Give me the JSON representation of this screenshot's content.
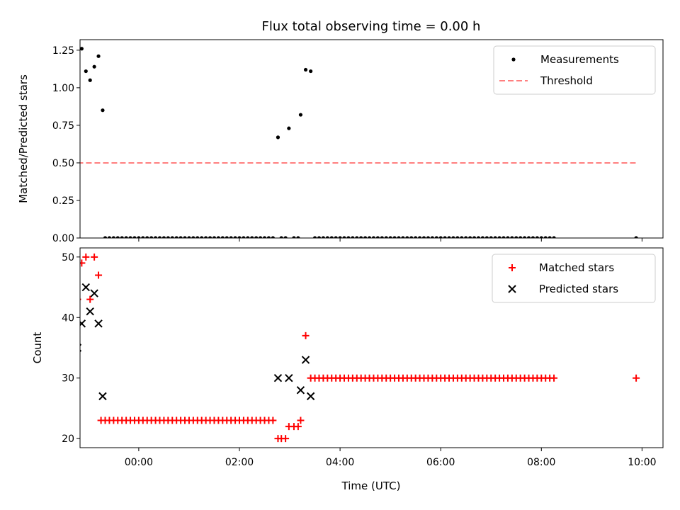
{
  "title": "Flux total observing time = 0.00 h",
  "xlabel": "Time (UTC)",
  "x_ticks": [
    "00:00",
    "02:00",
    "04:00",
    "06:00",
    "08:00",
    "10:00"
  ],
  "chart_data": [
    {
      "type": "scatter",
      "panel": "top",
      "ylabel": "Matched/Predicted stars",
      "xlim": [
        "-01:10",
        "10:25"
      ],
      "ylim": [
        0,
        1.32
      ],
      "y_ticks": [
        "0.00",
        "0.25",
        "0.50",
        "0.75",
        "1.00",
        "1.25"
      ],
      "x_ticks": [
        "00:00",
        "02:00",
        "04:00",
        "06:00",
        "08:00",
        "10:00"
      ],
      "legend_placement": "upper right",
      "series": [
        {
          "name": "Measurements",
          "marker": "dot",
          "color": "#000000",
          "points": [
            [
              "-01:13",
              1.23
            ],
            [
              "-01:08",
              1.26
            ],
            [
              "-01:03",
              1.11
            ],
            [
              "-00:58",
              1.05
            ],
            [
              "-00:53",
              1.14
            ],
            [
              "-00:48",
              1.21
            ],
            [
              "-00:43",
              0.85
            ],
            [
              "02:46",
              0.67
            ],
            [
              "02:59",
              0.73
            ],
            [
              "03:13",
              0.82
            ],
            [
              "03:19",
              1.12
            ],
            [
              "03:25",
              1.11
            ],
            [
              "09:53",
              0.0
            ]
          ],
          "zero_runs": [
            {
              "start": "-00:40",
              "end": "02:40",
              "step_minutes": 5
            },
            {
              "start": "02:50",
              "end": "02:55",
              "step_minutes": 5
            },
            {
              "start": "03:05",
              "end": "03:10",
              "step_minutes": 5
            },
            {
              "start": "03:30",
              "end": "08:15",
              "step_minutes": 5
            }
          ]
        },
        {
          "name": "Threshold",
          "line_style": "dashed",
          "color": "#ff7f7f",
          "x": [
            "-01:13",
            "09:53"
          ],
          "y": [
            0.5,
            0.5
          ]
        }
      ]
    },
    {
      "type": "scatter",
      "panel": "bottom",
      "ylabel": "Count",
      "xlim": [
        "-01:10",
        "10:25"
      ],
      "ylim": [
        18.5,
        51.5
      ],
      "y_ticks": [
        "20",
        "30",
        "40",
        "50"
      ],
      "x_ticks": [
        "00:00",
        "02:00",
        "04:00",
        "06:00",
        "08:00",
        "10:00"
      ],
      "legend_placement": "upper right",
      "series": [
        {
          "name": "Matched stars",
          "marker": "plus",
          "color": "#ff0000",
          "points": [
            [
              "-01:13",
              43
            ],
            [
              "-01:08",
              49
            ],
            [
              "-01:03",
              50
            ],
            [
              "-00:58",
              43
            ],
            [
              "-00:53",
              50
            ],
            [
              "-00:48",
              47
            ],
            [
              "02:46",
              20
            ],
            [
              "02:50",
              20
            ],
            [
              "02:55",
              20
            ],
            [
              "02:59",
              22
            ],
            [
              "03:05",
              22
            ],
            [
              "03:10",
              22
            ],
            [
              "03:13",
              23
            ],
            [
              "03:19",
              37
            ],
            [
              "09:53",
              30
            ]
          ],
          "constant_runs": [
            {
              "start": "-00:45",
              "end": "02:40",
              "step_minutes": 5,
              "value": 23
            },
            {
              "start": "03:25",
              "end": "08:15",
              "step_minutes": 5,
              "value": 30
            }
          ]
        },
        {
          "name": "Predicted stars",
          "marker": "x",
          "color": "#000000",
          "points": [
            [
              "-01:13",
              35
            ],
            [
              "-01:08",
              39
            ],
            [
              "-01:03",
              45
            ],
            [
              "-00:58",
              41
            ],
            [
              "-00:53",
              44
            ],
            [
              "-00:48",
              39
            ],
            [
              "-00:43",
              27
            ],
            [
              "02:46",
              30
            ],
            [
              "02:59",
              30
            ],
            [
              "03:13",
              28
            ],
            [
              "03:19",
              33
            ],
            [
              "03:25",
              27
            ]
          ]
        }
      ]
    }
  ],
  "colors": {
    "threshold": "#ff7f7f",
    "matched": "#ff0000",
    "predicted": "#000000",
    "measurements": "#000000"
  }
}
